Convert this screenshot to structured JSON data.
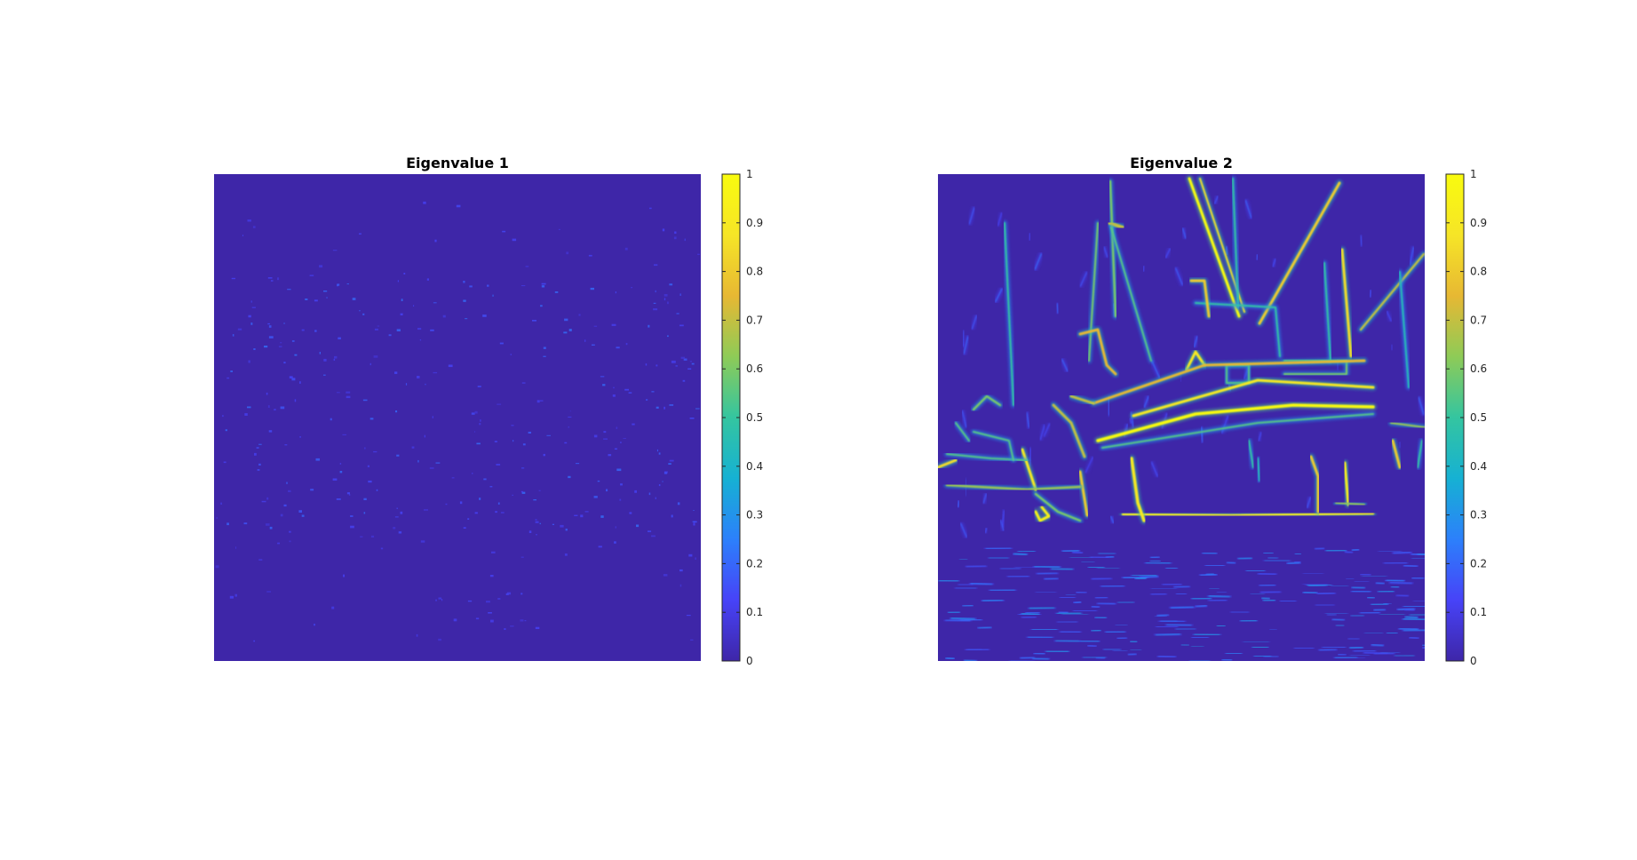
{
  "colormap": [
    "#3e26a8",
    "#4743f8",
    "#2c80fb",
    "#16b1d3",
    "#34c5a0",
    "#8ecb57",
    "#e7b833",
    "#f6e527",
    "#f9fb0e"
  ],
  "chart_data": [
    {
      "type": "heatmap",
      "title": "Eigenvalue 1",
      "background_color": "#3e26a8",
      "axes_visible": false,
      "grid": false,
      "colorbar": {
        "position": "right",
        "range": [
          0,
          1
        ],
        "ticks": [
          0,
          0.1,
          0.2,
          0.3,
          0.4,
          0.5,
          0.6,
          0.7,
          0.8,
          0.9,
          1
        ],
        "tick_labels": [
          "0",
          "0.1",
          "0.2",
          "0.3",
          "0.4",
          "0.5",
          "0.6",
          "0.7",
          "0.8",
          "0.9",
          "1"
        ]
      },
      "value_range_observed": [
        0,
        0.25
      ]
    },
    {
      "type": "heatmap",
      "title": "Eigenvalue 2",
      "background_color": "#3e26a8",
      "axes_visible": false,
      "grid": false,
      "colorbar": {
        "position": "right",
        "range": [
          0,
          1
        ],
        "ticks": [
          0,
          0.1,
          0.2,
          0.3,
          0.4,
          0.5,
          0.6,
          0.7,
          0.8,
          0.9,
          1
        ],
        "tick_labels": [
          "0",
          "0.1",
          "0.2",
          "0.3",
          "0.4",
          "0.5",
          "0.6",
          "0.7",
          "0.8",
          "0.9",
          "1"
        ]
      },
      "value_range_observed": [
        0,
        1
      ]
    }
  ]
}
